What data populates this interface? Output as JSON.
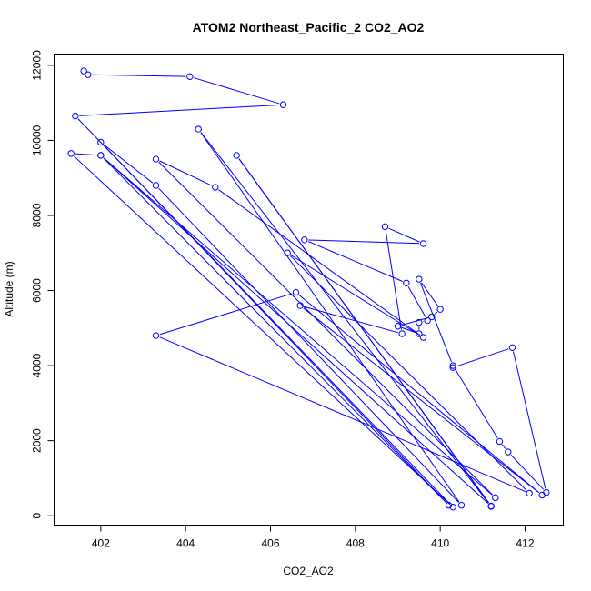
{
  "chart_data": {
    "type": "line",
    "title": "ATOM2 Northeast_Pacific_2 CO2_AO2",
    "xlabel": "CO2_AO2",
    "ylabel": "Altitude (m)",
    "xlim": [
      400.9,
      412.9
    ],
    "ylim": [
      -250,
      12300
    ],
    "xticks": [
      402,
      404,
      406,
      408,
      410,
      412
    ],
    "yticks": [
      0,
      2000,
      4000,
      6000,
      8000,
      10000,
      12000
    ],
    "grid": false,
    "color": "#0000ff",
    "marker": "open-circle",
    "series": [
      {
        "x": [
          401.6,
          401.7,
          404.1,
          406.3,
          401.4,
          410.3,
          401.3,
          402.0,
          410.2,
          402.0,
          403.3,
          410.5,
          404.3,
          411.2,
          405.2,
          411.2,
          402.0,
          411.3,
          403.3,
          404.7,
          409.6,
          406.4,
          412.1,
          403.3,
          406.6,
          412.4,
          406.7,
          409.1,
          408.7,
          409.6,
          406.8,
          409.2,
          409.7,
          409.5,
          409.5,
          409.0,
          409.8,
          410.0,
          409.5,
          410.3,
          411.4,
          411.6,
          412.5,
          411.7,
          410.3
        ],
        "y": [
          11850,
          11750,
          11700,
          10950,
          10650,
          230,
          9650,
          9600,
          280,
          9950,
          8800,
          280,
          10300,
          250,
          9600,
          260,
          9600,
          480,
          9500,
          8750,
          4750,
          7000,
          600,
          4800,
          5950,
          550,
          5600,
          4850,
          7700,
          7250,
          7350,
          6200,
          5200,
          5150,
          4850,
          5050,
          5300,
          5500,
          6300,
          4000,
          1980,
          1700,
          620,
          4480,
          3950
        ]
      }
    ]
  }
}
